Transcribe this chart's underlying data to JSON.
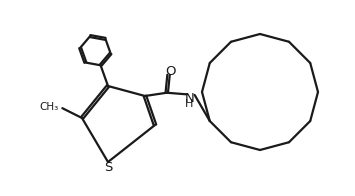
{
  "background_color": "#ffffff",
  "line_color": "#1a1a1a",
  "line_width": 1.6,
  "figsize": [
    3.55,
    1.96
  ],
  "dpi": 100,
  "xlim": [
    0,
    3.55
  ],
  "ylim": [
    0,
    1.96
  ]
}
